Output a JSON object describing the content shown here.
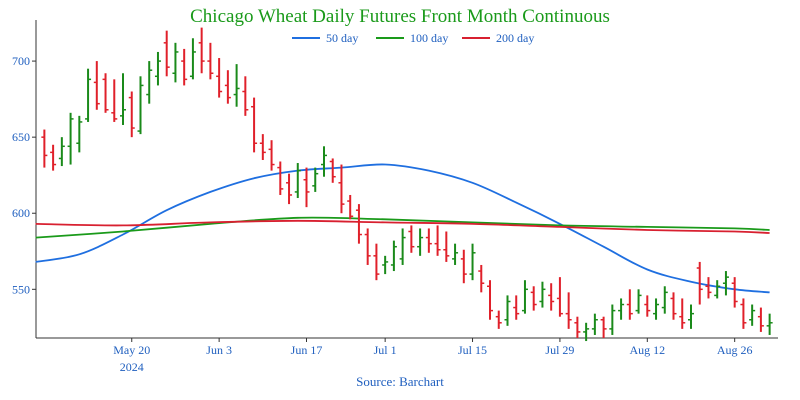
{
  "chart_data": {
    "type": "ohlc_bar_with_moving_averages",
    "title": "Chicago Wheat Daily Futures Front Month Continuous",
    "source": "Source: Barchart",
    "colors": {
      "title": "#1a9a1a",
      "axis_text": "#1f5fbf",
      "up_bar": "#1a8a1a",
      "down_bar": "#e0202a",
      "ma50": "#1f6fe0",
      "ma100": "#1a9a1a",
      "ma200": "#d82030",
      "axis": "#333333"
    },
    "legend": [
      {
        "key": "ma50",
        "label": "50 day"
      },
      {
        "key": "ma100",
        "label": "100 day"
      },
      {
        "key": "ma200",
        "label": "200 day"
      }
    ],
    "legend_position": "top",
    "x_ticks": [
      {
        "i": 11,
        "label": "May 20",
        "sub": "2024"
      },
      {
        "i": 21,
        "label": "Jun 3",
        "sub": ""
      },
      {
        "i": 31,
        "label": "Jun 17",
        "sub": ""
      },
      {
        "i": 40,
        "label": "Jul 1",
        "sub": ""
      },
      {
        "i": 50,
        "label": "Jul 15",
        "sub": ""
      },
      {
        "i": 60,
        "label": "Jul 29",
        "sub": ""
      },
      {
        "i": 70,
        "label": "Aug 12",
        "sub": ""
      },
      {
        "i": 80,
        "label": "Aug 26",
        "sub": ""
      }
    ],
    "y_ticks": [
      550,
      600,
      650,
      700
    ],
    "ylim": [
      518,
      727
    ],
    "num_days": 84,
    "bars": [
      [
        1,
        655,
        630,
        650,
        638
      ],
      [
        2,
        645,
        628,
        640,
        632
      ],
      [
        3,
        650,
        631,
        636,
        644
      ],
      [
        4,
        666,
        632,
        644,
        662
      ],
      [
        5,
        664,
        640,
        646,
        660
      ],
      [
        6,
        695,
        660,
        662,
        688
      ],
      [
        7,
        700,
        668,
        686,
        672
      ],
      [
        8,
        692,
        666,
        688,
        668
      ],
      [
        9,
        688,
        660,
        666,
        662
      ],
      [
        10,
        692,
        658,
        664,
        668
      ],
      [
        11,
        680,
        650,
        676,
        656
      ],
      [
        12,
        690,
        652,
        654,
        684
      ],
      [
        13,
        700,
        672,
        678,
        694
      ],
      [
        14,
        706,
        684,
        690,
        700
      ],
      [
        15,
        720,
        690,
        712,
        696
      ],
      [
        16,
        712,
        686,
        692,
        706
      ],
      [
        17,
        708,
        684,
        700,
        688
      ],
      [
        18,
        715,
        688,
        690,
        706
      ],
      [
        19,
        722,
        692,
        712,
        700
      ],
      [
        20,
        712,
        688,
        700,
        692
      ],
      [
        21,
        702,
        676,
        690,
        680
      ],
      [
        22,
        694,
        672,
        684,
        676
      ],
      [
        23,
        698,
        670,
        678,
        682
      ],
      [
        24,
        690,
        664,
        680,
        668
      ],
      [
        25,
        676,
        640,
        670,
        646
      ],
      [
        26,
        652,
        635,
        646,
        640
      ],
      [
        27,
        648,
        628,
        642,
        632
      ],
      [
        28,
        634,
        612,
        630,
        616
      ],
      [
        29,
        626,
        606,
        620,
        612
      ],
      [
        30,
        633,
        610,
        614,
        628
      ],
      [
        31,
        630,
        604,
        622,
        614
      ],
      [
        32,
        630,
        614,
        618,
        626
      ],
      [
        33,
        644,
        624,
        632,
        638
      ],
      [
        34,
        636,
        620,
        634,
        624
      ],
      [
        35,
        632,
        600,
        620,
        606
      ],
      [
        36,
        612,
        596,
        608,
        598
      ],
      [
        37,
        606,
        580,
        602,
        586
      ],
      [
        38,
        590,
        566,
        586,
        572
      ],
      [
        39,
        580,
        556,
        572,
        560
      ],
      [
        40,
        572,
        560,
        566,
        568
      ],
      [
        41,
        582,
        562,
        566,
        578
      ],
      [
        42,
        590,
        566,
        570,
        584
      ],
      [
        43,
        592,
        574,
        588,
        578
      ],
      [
        44,
        590,
        572,
        578,
        584
      ],
      [
        45,
        590,
        574,
        584,
        580
      ],
      [
        46,
        592,
        572,
        580,
        576
      ],
      [
        47,
        588,
        568,
        576,
        572
      ],
      [
        48,
        580,
        566,
        570,
        574
      ],
      [
        49,
        576,
        554,
        570,
        560
      ],
      [
        50,
        580,
        556,
        560,
        574
      ],
      [
        51,
        566,
        548,
        562,
        554
      ],
      [
        52,
        556,
        530,
        552,
        536
      ],
      [
        53,
        536,
        524,
        532,
        528
      ],
      [
        54,
        546,
        526,
        530,
        542
      ],
      [
        55,
        546,
        530,
        538,
        534
      ],
      [
        56,
        556,
        534,
        536,
        550
      ],
      [
        57,
        552,
        536,
        548,
        540
      ],
      [
        58,
        555,
        538,
        542,
        550
      ],
      [
        59,
        554,
        536,
        546,
        542
      ],
      [
        60,
        558,
        532,
        544,
        534
      ],
      [
        61,
        548,
        524,
        534,
        530
      ],
      [
        62,
        532,
        518,
        528,
        522
      ],
      [
        63,
        528,
        516,
        522,
        524
      ],
      [
        64,
        534,
        520,
        524,
        530
      ],
      [
        65,
        532,
        518,
        530,
        524
      ],
      [
        66,
        540,
        520,
        524,
        536
      ],
      [
        67,
        544,
        530,
        536,
        540
      ],
      [
        68,
        550,
        530,
        540,
        534
      ],
      [
        69,
        550,
        534,
        536,
        546
      ],
      [
        70,
        546,
        532,
        540,
        536
      ],
      [
        71,
        544,
        530,
        534,
        540
      ],
      [
        72,
        552,
        534,
        538,
        548
      ],
      [
        73,
        548,
        530,
        544,
        534
      ],
      [
        74,
        544,
        524,
        532,
        528
      ],
      [
        75,
        540,
        524,
        530,
        534
      ],
      [
        76,
        568,
        540,
        564,
        550
      ],
      [
        77,
        558,
        544,
        552,
        548
      ],
      [
        78,
        556,
        544,
        546,
        552
      ],
      [
        79,
        562,
        546,
        554,
        558
      ],
      [
        80,
        558,
        538,
        554,
        542
      ],
      [
        81,
        544,
        524,
        540,
        528
      ],
      [
        82,
        540,
        526,
        530,
        536
      ],
      [
        83,
        538,
        522,
        532,
        526
      ],
      [
        84,
        534,
        520,
        526,
        528
      ]
    ],
    "series": [
      {
        "key": "ma50",
        "name": "50 day",
        "points": [
          [
            0,
            568
          ],
          [
            5,
            573
          ],
          [
            10,
            586
          ],
          [
            15,
            602
          ],
          [
            20,
            614
          ],
          [
            25,
            623
          ],
          [
            30,
            628
          ],
          [
            35,
            630
          ],
          [
            40,
            632
          ],
          [
            45,
            628
          ],
          [
            50,
            620
          ],
          [
            55,
            607
          ],
          [
            60,
            593
          ],
          [
            65,
            578
          ],
          [
            70,
            563
          ],
          [
            75,
            555
          ],
          [
            80,
            550
          ],
          [
            84,
            548
          ]
        ]
      },
      {
        "key": "ma100",
        "name": "100 day",
        "points": [
          [
            0,
            584
          ],
          [
            10,
            588
          ],
          [
            20,
            593
          ],
          [
            30,
            597
          ],
          [
            40,
            596
          ],
          [
            50,
            594
          ],
          [
            60,
            592
          ],
          [
            70,
            591
          ],
          [
            80,
            590
          ],
          [
            84,
            589
          ]
        ]
      },
      {
        "key": "ma200",
        "name": "200 day",
        "points": [
          [
            0,
            593
          ],
          [
            10,
            592
          ],
          [
            20,
            594
          ],
          [
            30,
            595
          ],
          [
            40,
            594
          ],
          [
            50,
            593
          ],
          [
            60,
            591
          ],
          [
            70,
            589
          ],
          [
            80,
            588
          ],
          [
            84,
            587
          ]
        ]
      }
    ]
  }
}
